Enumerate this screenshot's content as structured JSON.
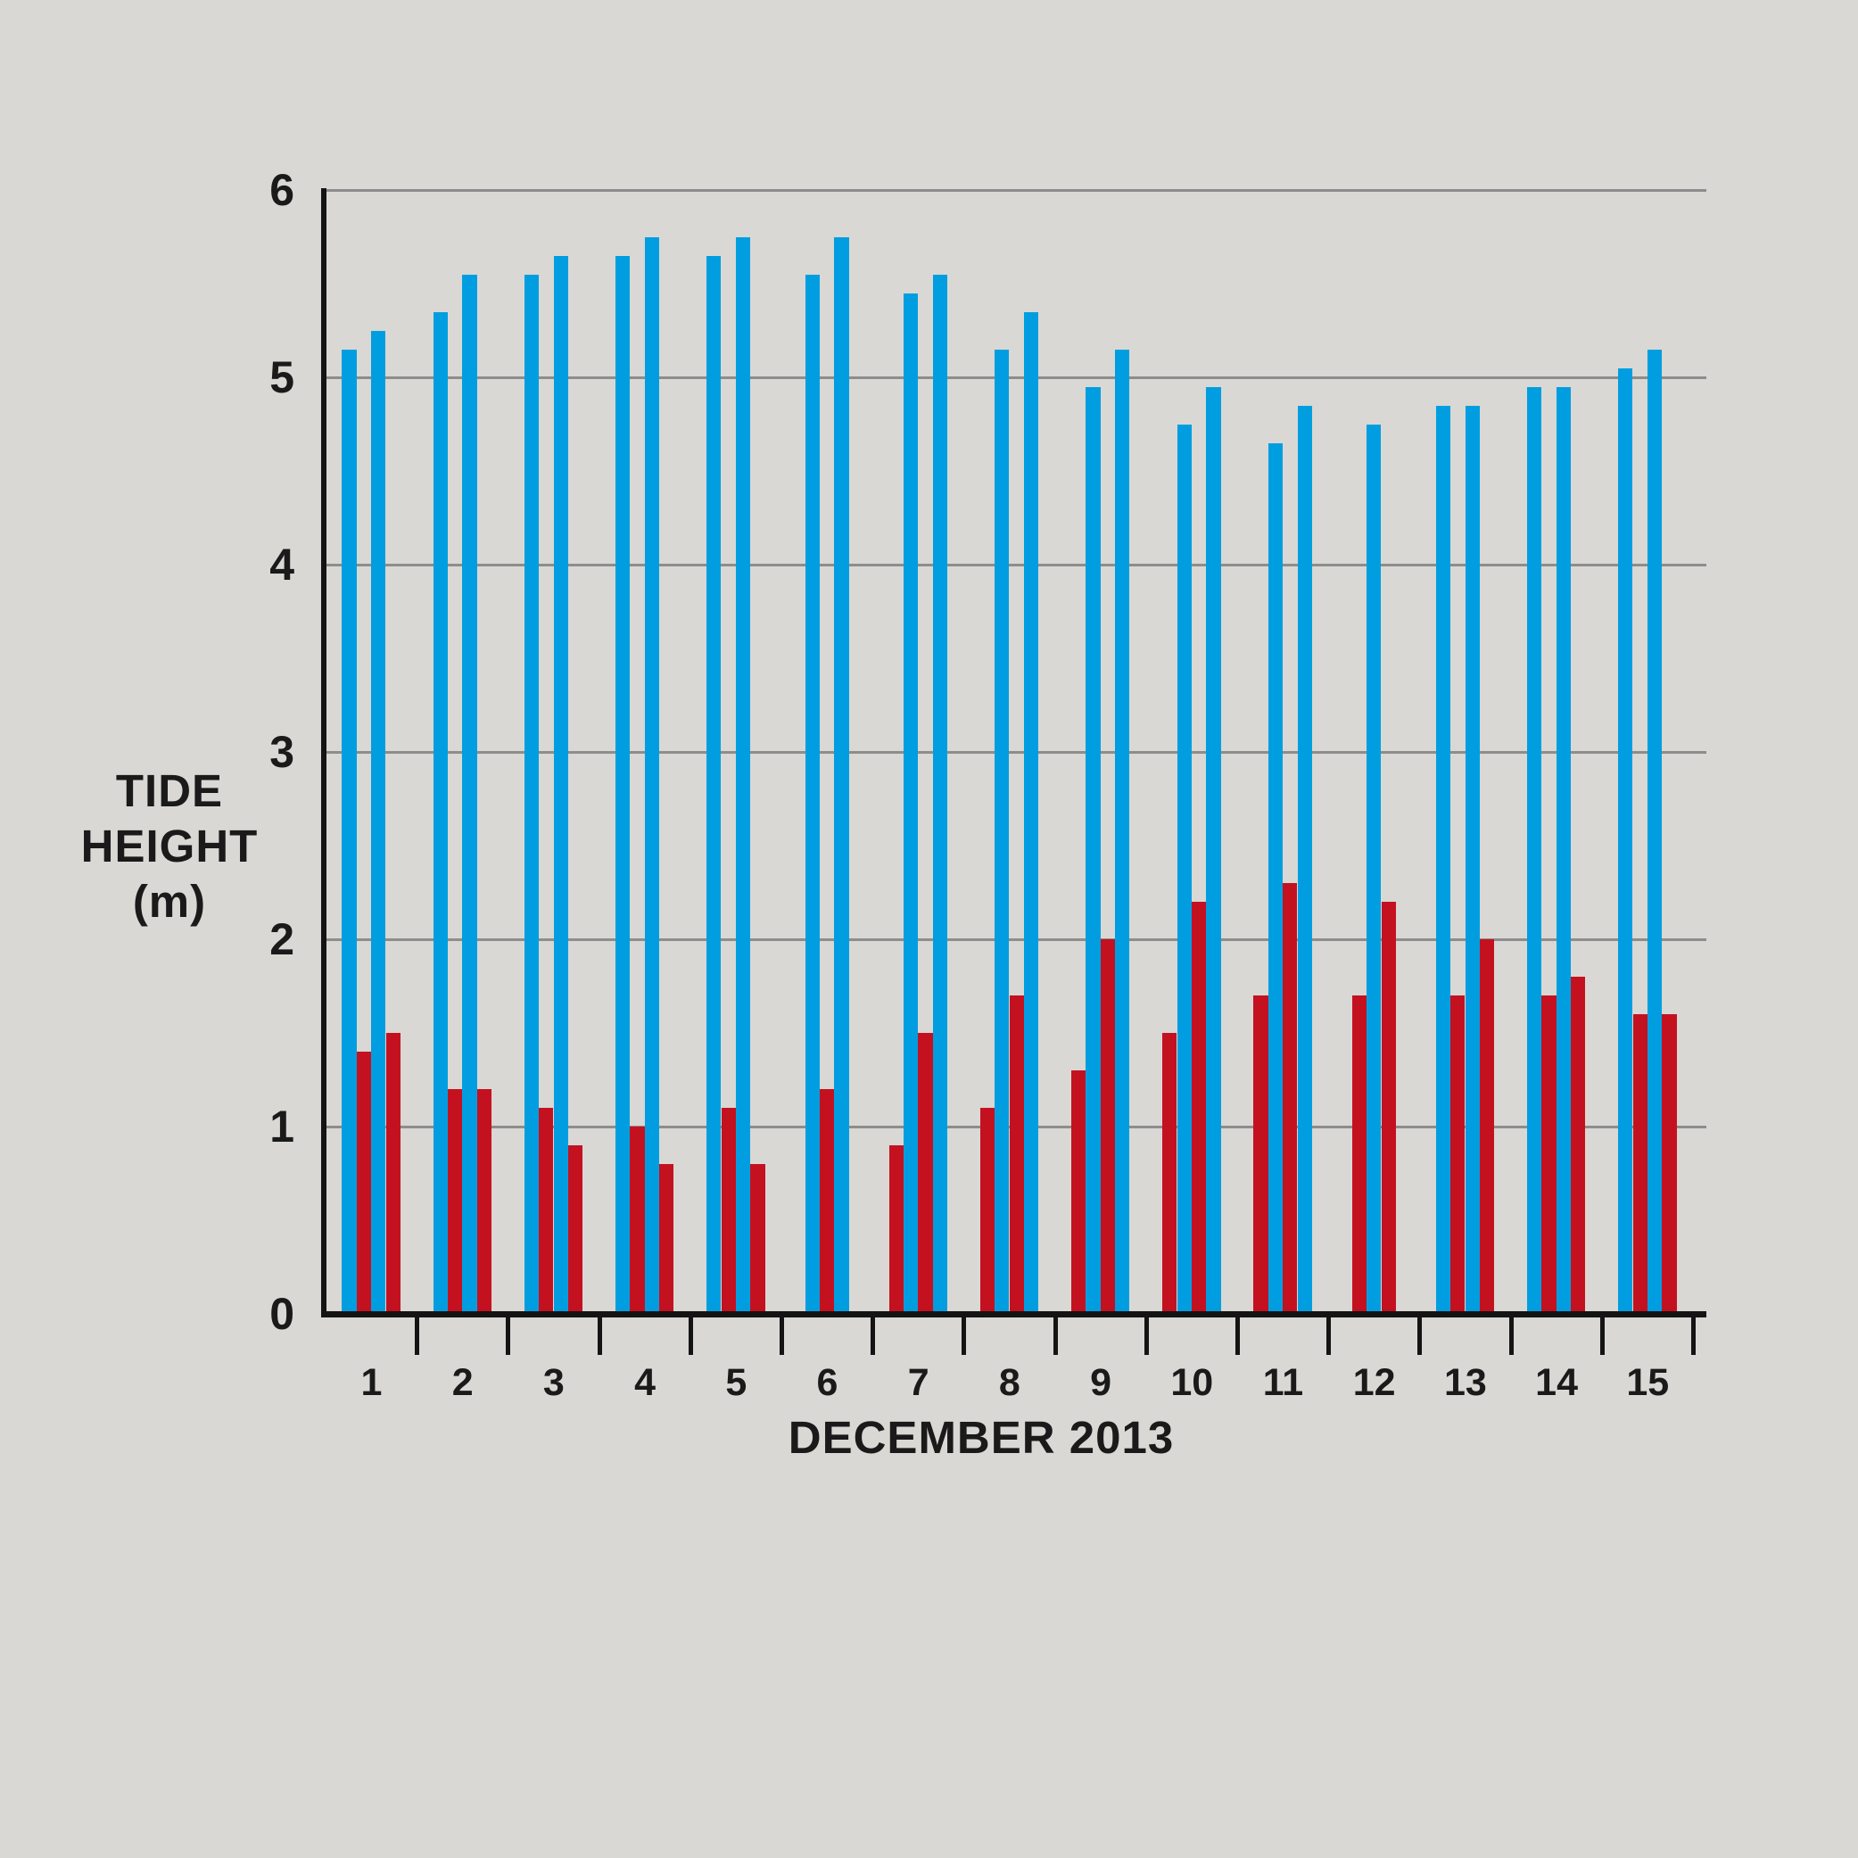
{
  "chart_data": {
    "type": "bar",
    "title": "",
    "xlabel": "DECEMBER 2013",
    "ylabel": "TIDE HEIGHT (m)",
    "ylabel_lines": [
      "TIDE",
      "HEIGHT",
      "(m)"
    ],
    "ylim": [
      0,
      6
    ],
    "yticks": [
      0,
      1,
      2,
      3,
      4,
      5,
      6
    ],
    "grid": "horizontal gridlines at each metre",
    "legend_position": "none",
    "bar_unit": "metres",
    "series_meaning": {
      "high_tide": "tall blue bars (high water heights)",
      "low_tide": "short red bars (low water heights)"
    },
    "colors": {
      "high_tide": "#009ee0",
      "low_tide": "#c41120",
      "background": "#d9d8d4",
      "gridline": "#8d8d8d",
      "axis": "#141414",
      "text": "#1a1a1a"
    },
    "days": [
      {
        "day": "1",
        "bars": [
          {
            "type": "high",
            "value": 5.15
          },
          {
            "type": "low",
            "value": 1.4
          },
          {
            "type": "high",
            "value": 5.25
          },
          {
            "type": "low",
            "value": 1.5
          }
        ]
      },
      {
        "day": "2",
        "bars": [
          {
            "type": "high",
            "value": 5.35
          },
          {
            "type": "low",
            "value": 1.2
          },
          {
            "type": "high",
            "value": 5.55
          },
          {
            "type": "low",
            "value": 1.2
          }
        ]
      },
      {
        "day": "3",
        "bars": [
          {
            "type": "high",
            "value": 5.55
          },
          {
            "type": "low",
            "value": 1.1
          },
          {
            "type": "high",
            "value": 5.65
          },
          {
            "type": "low",
            "value": 0.9
          }
        ]
      },
      {
        "day": "4",
        "bars": [
          {
            "type": "high",
            "value": 5.65
          },
          {
            "type": "low",
            "value": 1.0
          },
          {
            "type": "high",
            "value": 5.75
          },
          {
            "type": "low",
            "value": 0.8
          }
        ]
      },
      {
        "day": "5",
        "bars": [
          {
            "type": "high",
            "value": 5.65
          },
          {
            "type": "low",
            "value": 1.1
          },
          {
            "type": "high",
            "value": 5.75
          },
          {
            "type": "low",
            "value": 0.8
          }
        ]
      },
      {
        "day": "6",
        "bars": [
          {
            "type": "high",
            "value": 5.55
          },
          {
            "type": "low",
            "value": 1.2
          },
          {
            "type": "high",
            "value": 5.75
          }
        ]
      },
      {
        "day": "7",
        "bars": [
          {
            "type": "low",
            "value": 0.9
          },
          {
            "type": "high",
            "value": 5.45
          },
          {
            "type": "low",
            "value": 1.5
          },
          {
            "type": "high",
            "value": 5.55
          }
        ]
      },
      {
        "day": "8",
        "bars": [
          {
            "type": "low",
            "value": 1.1
          },
          {
            "type": "high",
            "value": 5.15
          },
          {
            "type": "low",
            "value": 1.7
          },
          {
            "type": "high",
            "value": 5.35
          }
        ]
      },
      {
        "day": "9",
        "bars": [
          {
            "type": "low",
            "value": 1.3
          },
          {
            "type": "high",
            "value": 4.95
          },
          {
            "type": "low",
            "value": 2.0
          },
          {
            "type": "high",
            "value": 5.15
          }
        ]
      },
      {
        "day": "10",
        "bars": [
          {
            "type": "low",
            "value": 1.5
          },
          {
            "type": "high",
            "value": 4.75
          },
          {
            "type": "low",
            "value": 2.2
          },
          {
            "type": "high",
            "value": 4.95
          }
        ]
      },
      {
        "day": "11",
        "bars": [
          {
            "type": "low",
            "value": 1.7
          },
          {
            "type": "high",
            "value": 4.65
          },
          {
            "type": "low",
            "value": 2.3
          },
          {
            "type": "high",
            "value": 4.85
          }
        ]
      },
      {
        "day": "12",
        "bars": [
          {
            "type": "low",
            "value": 1.7
          },
          {
            "type": "high",
            "value": 4.75
          },
          {
            "type": "low",
            "value": 2.2
          }
        ]
      },
      {
        "day": "13",
        "bars": [
          {
            "type": "high",
            "value": 4.85
          },
          {
            "type": "low",
            "value": 1.7
          },
          {
            "type": "high",
            "value": 4.85
          },
          {
            "type": "low",
            "value": 2.0
          }
        ]
      },
      {
        "day": "14",
        "bars": [
          {
            "type": "high",
            "value": 4.95
          },
          {
            "type": "low",
            "value": 1.7
          },
          {
            "type": "high",
            "value": 4.95
          },
          {
            "type": "low",
            "value": 1.8
          }
        ]
      },
      {
        "day": "15",
        "bars": [
          {
            "type": "high",
            "value": 5.05
          },
          {
            "type": "low",
            "value": 1.6
          },
          {
            "type": "high",
            "value": 5.15
          },
          {
            "type": "low",
            "value": 1.6
          }
        ]
      }
    ]
  }
}
